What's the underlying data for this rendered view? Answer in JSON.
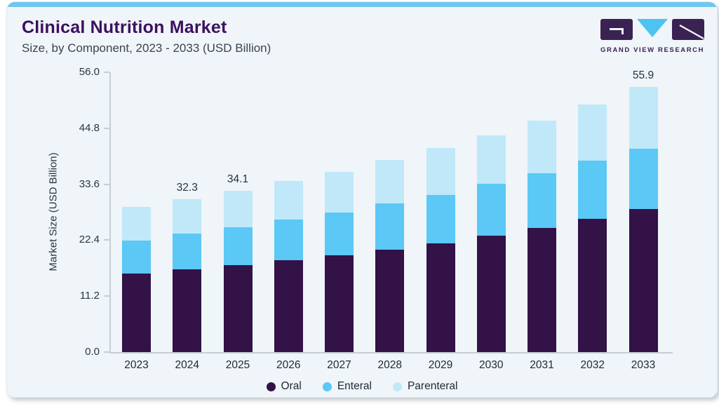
{
  "page": {
    "accent_strip_color": "#6fc7ed",
    "card_background": "#eff5f9"
  },
  "header": {
    "title": "Clinical Nutrition Market",
    "subtitle": "Size, by Component, 2023 - 2033 (USD Billion)"
  },
  "logo": {
    "name": "GRAND VIEW RESEARCH",
    "purple": "#3a2353",
    "blue": "#4cc3f2"
  },
  "chart_data": {
    "type": "bar",
    "stacked": true,
    "title": "Clinical Nutrition Market Size, by Component, 2023 - 2033 (USD Billion)",
    "xlabel": "",
    "ylabel": "Market Size (USD Billion)",
    "ylim": [
      0,
      56
    ],
    "ytick_labels": [
      "56.0",
      "44.8",
      "33.6",
      "22.4",
      "11.2",
      "0.0"
    ],
    "grid": false,
    "legend_position": "bottom",
    "categories": [
      "2023",
      "2024",
      "2025",
      "2026",
      "2027",
      "2028",
      "2029",
      "2030",
      "2031",
      "2032",
      "2033"
    ],
    "series": [
      {
        "name": "Oral",
        "color": "#321247",
        "values": [
          16.6,
          17.5,
          18.3,
          19.4,
          20.4,
          21.6,
          22.9,
          24.5,
          26.2,
          28.1,
          30.2
        ]
      },
      {
        "name": "Enteral",
        "color": "#5bc8f5",
        "values": [
          7.0,
          7.5,
          8.0,
          8.5,
          9.1,
          9.8,
          10.2,
          11.0,
          11.6,
          12.3,
          12.7
        ]
      },
      {
        "name": "Parenteral",
        "color": "#c0e8f9",
        "values": [
          7.0,
          7.3,
          7.8,
          8.2,
          8.6,
          9.1,
          10.0,
          10.3,
          11.1,
          11.8,
          13.0
        ]
      }
    ],
    "totals": [
      30.6,
      32.3,
      34.1,
      36.1,
      38.1,
      40.5,
      43.1,
      45.8,
      48.9,
      52.2,
      55.9
    ],
    "value_labels_shown": {
      "2024": "32.3",
      "2025": "34.1",
      "2033": "55.9"
    }
  }
}
